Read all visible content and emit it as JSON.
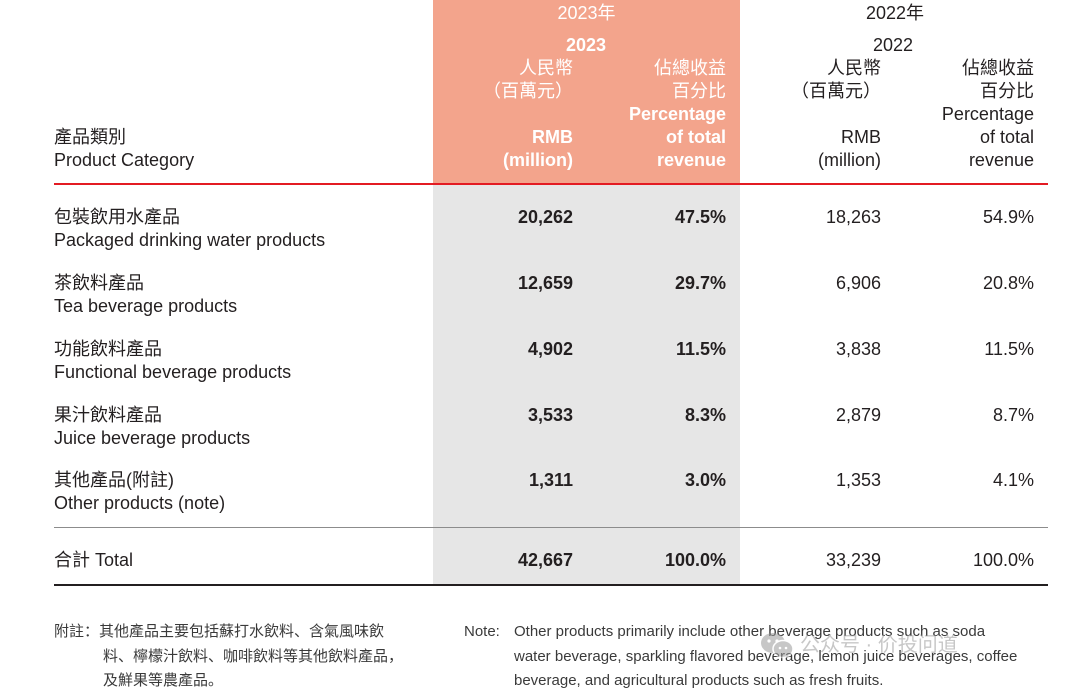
{
  "header": {
    "col_2023_year": "2023年",
    "col_2022_year": "2022年",
    "y2023": "2023",
    "y2022": "2022",
    "rmb_cn": "人民幣",
    "million_cn": "（百萬元）",
    "pct_cn_1": "佔總收益",
    "pct_cn_2": "百分比",
    "pct_en_1": "Percentage",
    "pct_en_2": "of total",
    "pct_en_3": "revenue",
    "rmb_en": "RMB",
    "million_en": "(million)",
    "category_cn": "產品類別",
    "category_en": "Product Category"
  },
  "rows": [
    {
      "cn": "包裝飲用水產品",
      "en": "Packaged drinking water products",
      "rmb_2023": "20,262",
      "pct_2023": "47.5%",
      "rmb_2022": "18,263",
      "pct_2022": "54.9%"
    },
    {
      "cn": "茶飲料產品",
      "en": "Tea beverage products",
      "rmb_2023": "12,659",
      "pct_2023": "29.7%",
      "rmb_2022": "6,906",
      "pct_2022": "20.8%"
    },
    {
      "cn": "功能飲料產品",
      "en": "Functional beverage products",
      "rmb_2023": "4,902",
      "pct_2023": "11.5%",
      "rmb_2022": "3,838",
      "pct_2022": "11.5%"
    },
    {
      "cn": "果汁飲料產品",
      "en": "Juice beverage products",
      "rmb_2023": "3,533",
      "pct_2023": "8.3%",
      "rmb_2022": "2,879",
      "pct_2022": "8.7%"
    },
    {
      "cn": "其他產品(附註)",
      "en": "Other products (note)",
      "rmb_2023": "1,311",
      "pct_2023": "3.0%",
      "rmb_2022": "1,353",
      "pct_2022": "4.1%"
    }
  ],
  "total": {
    "label": "合計 Total",
    "rmb_2023": "42,667",
    "pct_2023": "100.0%",
    "rmb_2022": "33,239",
    "pct_2022": "100.0%"
  },
  "notes": {
    "cn_1": "附註：其他產品主要包括蘇打水飲料、含氣風味飲",
    "cn_2": "料、檸檬汁飲料、咖啡飲料等其他飲料產品，",
    "cn_3": "及鮮果等農產品。",
    "en_label": "Note:",
    "en_1": "Other products primarily include other beverage products such as soda",
    "en_2": "water beverage, sparkling flavored beverage, lemon juice beverages, coffee",
    "en_3": "beverage, and agricultural products such as fresh fruits."
  },
  "watermark": "公众号 · 价投问道",
  "colors": {
    "highlight_header": "#f3a48c",
    "highlight_body": "#e6e6e6",
    "rule_red": "#e31b23"
  }
}
